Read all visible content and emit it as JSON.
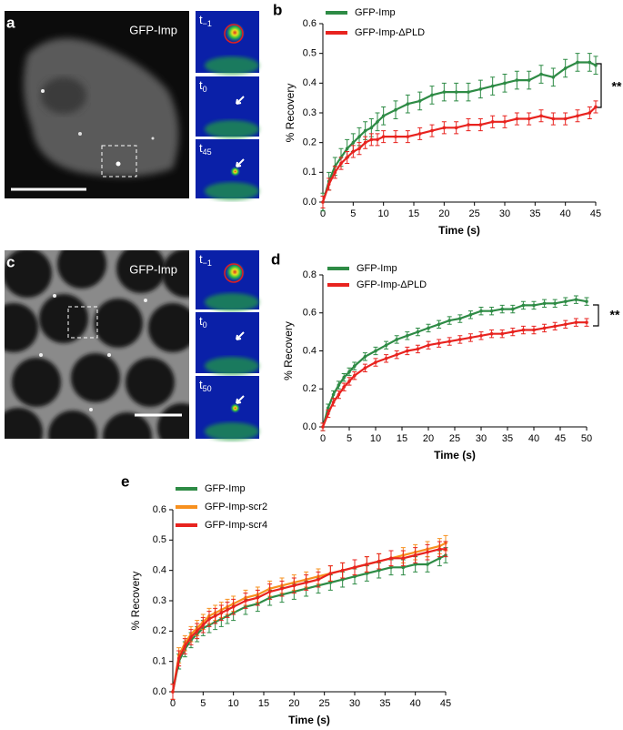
{
  "images": [
    {
      "panel_label": "a",
      "title": "GFP-Imp",
      "insets": [
        {
          "base": "t",
          "sub": "−1"
        },
        {
          "base": "t",
          "sub": "0"
        },
        {
          "base": "t",
          "sub": "45"
        }
      ]
    },
    {
      "panel_label": "c",
      "title": "GFP-Imp",
      "insets": [
        {
          "base": "t",
          "sub": "−1"
        },
        {
          "base": "t",
          "sub": "0"
        },
        {
          "base": "t",
          "sub": "50"
        }
      ]
    }
  ],
  "chart_data": [
    {
      "type": "line",
      "panel_label": "b",
      "y_label": "% Recovery",
      "x_label": "Time (s)",
      "annotation": "**",
      "x": [
        0,
        1,
        2,
        3,
        4,
        5,
        6,
        7,
        8,
        9,
        10,
        12,
        14,
        16,
        18,
        20,
        22,
        24,
        26,
        28,
        30,
        32,
        34,
        36,
        38,
        40,
        42,
        44,
        45
      ],
      "series": [
        {
          "name": "GFP-Imp",
          "color": "#2e8b45",
          "error": 0.03,
          "values": [
            0,
            0.07,
            0.12,
            0.15,
            0.18,
            0.2,
            0.22,
            0.24,
            0.25,
            0.27,
            0.29,
            0.31,
            0.33,
            0.34,
            0.36,
            0.37,
            0.37,
            0.37,
            0.38,
            0.39,
            0.4,
            0.41,
            0.41,
            0.43,
            0.42,
            0.45,
            0.47,
            0.47,
            0.46
          ]
        },
        {
          "name": "GFP-Imp-ΔPLD",
          "color": "#e8231f",
          "error": 0.02,
          "values": [
            0,
            0.06,
            0.1,
            0.13,
            0.15,
            0.17,
            0.18,
            0.2,
            0.21,
            0.21,
            0.22,
            0.22,
            0.22,
            0.23,
            0.24,
            0.25,
            0.25,
            0.26,
            0.26,
            0.27,
            0.27,
            0.28,
            0.28,
            0.29,
            0.28,
            0.28,
            0.29,
            0.3,
            0.32
          ]
        }
      ],
      "xlim": [
        0,
        45
      ],
      "xticks": [
        0,
        5,
        10,
        15,
        20,
        25,
        30,
        35,
        40,
        45
      ],
      "ylim": [
        0,
        0.6
      ],
      "yticks": [
        {
          "value": 0,
          "label": "0.0"
        },
        0.1,
        0.2,
        0.3,
        0.4,
        0.5,
        0.6
      ]
    },
    {
      "type": "line",
      "panel_label": "d",
      "y_label": "% Recovery",
      "x_label": "Time (s)",
      "annotation": "**",
      "x": [
        0,
        1,
        2,
        3,
        4,
        5,
        6,
        8,
        10,
        12,
        14,
        16,
        18,
        20,
        22,
        24,
        26,
        28,
        30,
        32,
        34,
        36,
        38,
        40,
        42,
        44,
        46,
        48,
        50
      ],
      "series": [
        {
          "name": "GFP-Imp",
          "color": "#2e8b45",
          "error": 0.02,
          "values": [
            0,
            0.1,
            0.17,
            0.22,
            0.26,
            0.29,
            0.32,
            0.37,
            0.4,
            0.43,
            0.46,
            0.48,
            0.5,
            0.52,
            0.54,
            0.56,
            0.57,
            0.59,
            0.61,
            0.61,
            0.62,
            0.62,
            0.64,
            0.64,
            0.65,
            0.65,
            0.66,
            0.67,
            0.66
          ]
        },
        {
          "name": "GFP-Imp-ΔPLD",
          "color": "#e8231f",
          "error": 0.02,
          "values": [
            0,
            0.07,
            0.13,
            0.17,
            0.21,
            0.24,
            0.27,
            0.31,
            0.34,
            0.36,
            0.38,
            0.4,
            0.41,
            0.43,
            0.44,
            0.45,
            0.46,
            0.47,
            0.48,
            0.49,
            0.49,
            0.5,
            0.51,
            0.51,
            0.52,
            0.53,
            0.54,
            0.55,
            0.55
          ]
        }
      ],
      "xlim": [
        0,
        50
      ],
      "xticks": [
        0,
        5,
        10,
        15,
        20,
        25,
        30,
        35,
        40,
        45,
        50
      ],
      "ylim": [
        0,
        0.8
      ],
      "yticks": [
        {
          "value": 0,
          "label": "0.0"
        },
        0.2,
        0.4,
        0.6,
        0.8
      ]
    },
    {
      "type": "line",
      "panel_label": "e",
      "y_label": "% Recovery",
      "x_label": "Time (s)",
      "x": [
        0,
        1,
        2,
        3,
        4,
        5,
        6,
        7,
        8,
        9,
        10,
        12,
        14,
        16,
        18,
        20,
        22,
        24,
        26,
        28,
        30,
        32,
        34,
        36,
        38,
        40,
        42,
        44,
        45
      ],
      "series": [
        {
          "name": "GFP-Imp",
          "color": "#2e8b45",
          "error": 0.025,
          "values": [
            0,
            0.1,
            0.14,
            0.17,
            0.19,
            0.21,
            0.22,
            0.23,
            0.24,
            0.25,
            0.26,
            0.28,
            0.29,
            0.31,
            0.32,
            0.33,
            0.34,
            0.35,
            0.36,
            0.37,
            0.38,
            0.39,
            0.4,
            0.41,
            0.41,
            0.42,
            0.42,
            0.44,
            0.45
          ]
        },
        {
          "name": "GFP-Imp-scr2",
          "color": "#f7901e",
          "error": 0.025,
          "values": [
            0,
            0.12,
            0.16,
            0.19,
            0.21,
            0.23,
            0.25,
            0.26,
            0.27,
            0.28,
            0.29,
            0.31,
            0.32,
            0.34,
            0.35,
            0.36,
            0.37,
            0.38,
            0.39,
            0.4,
            0.41,
            0.42,
            0.43,
            0.44,
            0.45,
            0.46,
            0.47,
            0.48,
            0.49
          ]
        },
        {
          "name": "GFP-Imp-scr4",
          "color": "#e8231f",
          "error": 0.025,
          "values": [
            0,
            0.11,
            0.15,
            0.18,
            0.2,
            0.22,
            0.24,
            0.25,
            0.26,
            0.27,
            0.28,
            0.3,
            0.31,
            0.33,
            0.34,
            0.35,
            0.36,
            0.37,
            0.39,
            0.4,
            0.41,
            0.42,
            0.43,
            0.44,
            0.44,
            0.45,
            0.46,
            0.47,
            0.47
          ]
        }
      ],
      "xlim": [
        0,
        45
      ],
      "xticks": [
        0,
        5,
        10,
        15,
        20,
        25,
        30,
        35,
        40,
        45
      ],
      "ylim": [
        0,
        0.6
      ],
      "yticks": [
        {
          "value": 0,
          "label": "0.0"
        },
        0.1,
        0.2,
        0.3,
        0.4,
        0.5,
        0.6
      ]
    }
  ]
}
